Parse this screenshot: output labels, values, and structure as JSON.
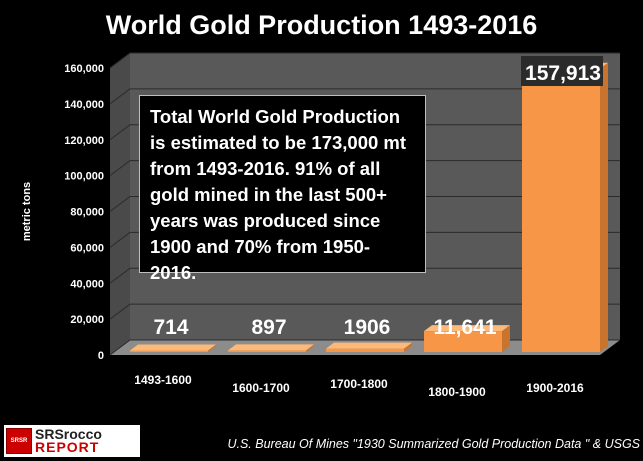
{
  "chart_data": {
    "type": "bar",
    "title": "World Gold Production 1493-2016",
    "ylabel": "metric tons",
    "xlabel": "",
    "categories": [
      "1493-1600",
      "1600-1700",
      "1700-1800",
      "1800-1900",
      "1900-2016"
    ],
    "values": [
      714,
      897,
      1906,
      11641,
      157913
    ],
    "data_labels": [
      "714",
      "897",
      "1906",
      "11,641",
      "157,913"
    ],
    "ylim": [
      0,
      160000
    ],
    "yticks": [
      0,
      20000,
      40000,
      60000,
      80000,
      100000,
      120000,
      140000,
      160000
    ],
    "ytick_labels": [
      "0",
      "20,000",
      "40,000",
      "60,000",
      "80,000",
      "100,000",
      "120,000",
      "140,000",
      "160,000"
    ],
    "grid": true,
    "style": "3d",
    "colors": {
      "bar": "#f79646",
      "bar_top": "#fbb97a",
      "bar_side": "#c8742e",
      "wall": "#595959",
      "floor": "#8c8c8c"
    },
    "annotation": "Total World Gold Production is estimated to be 173,000 mt from 1493-2016.  91% of all gold mined in the last 500+ years was produced since 1900 and 70% from 1950-2016."
  },
  "footer": {
    "source": "U.S. Bureau Of Mines \"1930 Summarized Gold Production Data \"  & USGS",
    "logo_line1": "SRSrocco",
    "logo_line2": "REPORT",
    "logo_badge": "SRSR",
    "logo_icon": "srsrocco-logo"
  }
}
